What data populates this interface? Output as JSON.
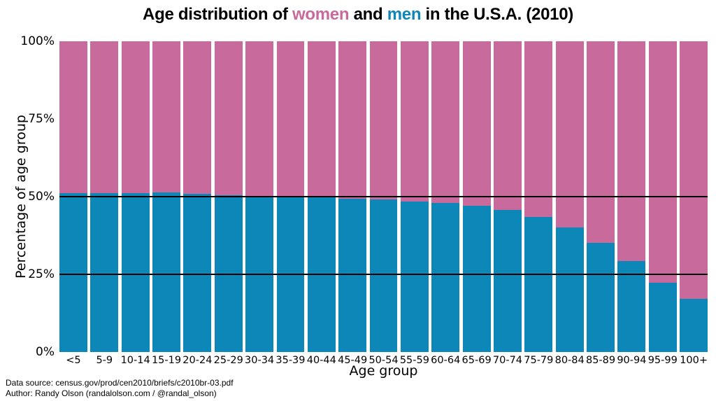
{
  "title": {
    "full": "Age distribution of women and men in the U.S.A. (2010)",
    "prefix": "Age distribution of ",
    "women_word": "women",
    "middle": " and ",
    "men_word": "men",
    "suffix": " in the U.S.A. (2010)"
  },
  "colors": {
    "women": "#c96a9c",
    "men": "#0d86b8",
    "reference_line": "#000000",
    "background": "#ffffff",
    "text": "#000000"
  },
  "footer": {
    "line1": "Data source: census.gov/prod/cen2010/briefs/c2010br-03.pdf",
    "line2": "Author: Randy Olson (randalolson.com / @randal_olson)"
  },
  "chart_data": {
    "type": "bar",
    "stacked": true,
    "title": "Age distribution of women and men in the U.S.A. (2010)",
    "xlabel": "Age group",
    "ylabel": "Percentage of age group",
    "ylim": [
      0,
      100
    ],
    "grid": false,
    "legend": "none (series names colored in title)",
    "categories": [
      "<5",
      "5-9",
      "10-14",
      "15-19",
      "20-24",
      "25-29",
      "30-34",
      "35-39",
      "40-44",
      "45-49",
      "50-54",
      "55-59",
      "60-64",
      "65-69",
      "70-74",
      "75-79",
      "80-84",
      "85-89",
      "90-94",
      "95-99",
      "100+"
    ],
    "series": [
      {
        "name": "men",
        "color": "#0d86b8",
        "values": [
          51.1,
          51.1,
          51.2,
          51.3,
          51.0,
          50.4,
          50.1,
          49.8,
          49.7,
          49.4,
          49.0,
          48.4,
          48.0,
          47.1,
          45.7,
          43.5,
          40.0,
          35.2,
          29.3,
          22.2,
          17.2
        ]
      },
      {
        "name": "women",
        "color": "#c96a9c",
        "values": [
          48.9,
          48.9,
          48.8,
          48.7,
          49.0,
          49.6,
          49.9,
          50.2,
          50.3,
          50.6,
          51.0,
          51.6,
          52.0,
          52.9,
          54.3,
          56.5,
          60.0,
          64.8,
          70.7,
          77.8,
          82.8
        ]
      }
    ],
    "yticks": [
      {
        "value": 0,
        "label": "0%"
      },
      {
        "value": 25,
        "label": "25%"
      },
      {
        "value": 50,
        "label": "50%"
      },
      {
        "value": 75,
        "label": "75%"
      },
      {
        "value": 100,
        "label": "100%"
      }
    ],
    "reference_lines": [
      25,
      50
    ]
  }
}
